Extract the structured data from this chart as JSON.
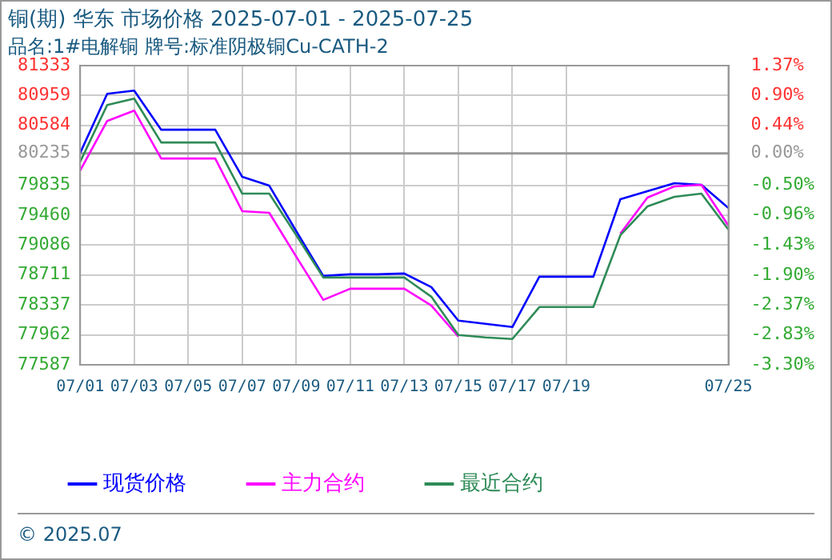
{
  "chart_data": {
    "type": "line",
    "title": "铜(期) 华东 市场价格 2025-07-01 - 2025-07-25",
    "subtitle": "品名:1#电解铜 牌号:标准阴极铜Cu-CATH-2",
    "x": [
      "2025-07-01",
      "2025-07-02",
      "2025-07-03",
      "2025-07-04",
      "2025-07-05",
      "2025-07-06",
      "2025-07-07",
      "2025-07-08",
      "2025-07-09",
      "2025-07-10",
      "2025-07-11",
      "2025-07-12",
      "2025-07-13",
      "2025-07-14",
      "2025-07-15",
      "2025-07-16",
      "2025-07-17",
      "2025-07-18",
      "2025-07-19",
      "2025-07-20",
      "2025-07-21",
      "2025-07-22",
      "2025-07-23",
      "2025-07-24",
      "2025-07-25"
    ],
    "series": [
      {
        "name": "现货价格",
        "color": "#0000ff",
        "values": [
          80240,
          80980,
          81020,
          80530,
          80530,
          80530,
          79940,
          79830,
          79260,
          78700,
          78720,
          78720,
          78730,
          78560,
          78140,
          78100,
          78060,
          78690,
          78690,
          78690,
          79660,
          79760,
          79860,
          79840,
          79550
        ]
      },
      {
        "name": "主力合约",
        "color": "#ff00ff",
        "values": [
          80020,
          80640,
          80770,
          80170,
          80170,
          80170,
          79510,
          79490,
          78940,
          78400,
          78540,
          78540,
          78540,
          78330,
          77940,
          null,
          null,
          null,
          null,
          null,
          79230,
          79680,
          79820,
          79840,
          79330
        ]
      },
      {
        "name": "最近合约",
        "color": "#2e8b57",
        "values": [
          80130,
          80840,
          80920,
          80370,
          80370,
          80370,
          79730,
          79730,
          79210,
          78680,
          78680,
          78680,
          78680,
          78440,
          77960,
          77930,
          77910,
          78310,
          78310,
          78310,
          79210,
          79570,
          79690,
          79730,
          79280
        ]
      }
    ],
    "xlim": [
      "2025-07-01",
      "2025-07-25"
    ],
    "xticks": [
      {
        "value": "2025-07-01",
        "label": "07/01"
      },
      {
        "value": "2025-07-03",
        "label": "07/03"
      },
      {
        "value": "2025-07-05",
        "label": "07/05"
      },
      {
        "value": "2025-07-07",
        "label": "07/07"
      },
      {
        "value": "2025-07-09",
        "label": "07/09"
      },
      {
        "value": "2025-07-11",
        "label": "07/11"
      },
      {
        "value": "2025-07-13",
        "label": "07/13"
      },
      {
        "value": "2025-07-15",
        "label": "07/15"
      },
      {
        "value": "2025-07-17",
        "label": "07/17"
      },
      {
        "value": "2025-07-19",
        "label": "07/19"
      },
      {
        "value": "2025-07-25",
        "label": "07/25"
      }
    ],
    "ylim": [
      77587,
      81333
    ],
    "yticks": [
      77587,
      77962,
      78337,
      78711,
      79086,
      79460,
      79835,
      80235,
      80584,
      80959,
      81333
    ],
    "y2lim": [
      -3.3,
      1.37
    ],
    "y2ticks": [
      {
        "value": -3.3,
        "label": "-3.30%"
      },
      {
        "value": -2.83,
        "label": "-2.83%"
      },
      {
        "value": -2.37,
        "label": "-2.37%"
      },
      {
        "value": -1.9,
        "label": "-1.90%"
      },
      {
        "value": -1.43,
        "label": "-1.43%"
      },
      {
        "value": -0.96,
        "label": "-0.96%"
      },
      {
        "value": -0.5,
        "label": "-0.50%"
      },
      {
        "value": 0,
        "label": "0.00%"
      },
      {
        "value": 0.44,
        "label": "0.44%"
      },
      {
        "value": 0.9,
        "label": "0.90%"
      },
      {
        "value": 1.37,
        "label": "1.37%"
      }
    ],
    "ref_lines": [
      {
        "axis": "y2",
        "value": 0,
        "color": "#999999"
      }
    ],
    "grid": true,
    "legend": "bottom left",
    "marker": "none",
    "line_style": "solid",
    "annotations": [
      "© 2025.07"
    ]
  }
}
